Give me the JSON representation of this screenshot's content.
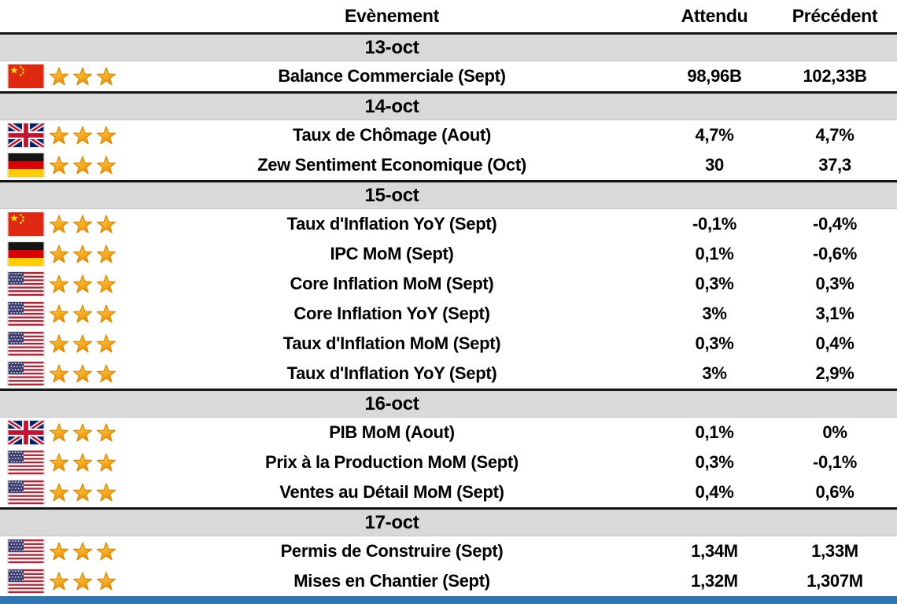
{
  "header": {
    "event": "Evènement",
    "expected": "Attendu",
    "previous": "Précédent"
  },
  "colors": {
    "band_bg": "#d9d9d9",
    "band_rule": "#141414",
    "star_light": "#ffdb5e",
    "star_dark": "#f09000",
    "star_stroke": "#e28a00",
    "accent_bar": "#2e75b6",
    "text": "#000000"
  },
  "groups": [
    {
      "date": "13-oct",
      "events": [
        {
          "flag": "cn",
          "stars": 3,
          "name": "Balance Commerciale (Sept)",
          "expected": "98,96B",
          "previous": "102,33B"
        }
      ]
    },
    {
      "date": "14-oct",
      "events": [
        {
          "flag": "gb",
          "stars": 3,
          "name": "Taux de Chômage (Aout)",
          "expected": "4,7%",
          "previous": "4,7%"
        },
        {
          "flag": "de",
          "stars": 3,
          "name": "Zew Sentiment Economique (Oct)",
          "expected": "30",
          "previous": "37,3"
        }
      ]
    },
    {
      "date": "15-oct",
      "events": [
        {
          "flag": "cn",
          "stars": 3,
          "name": "Taux d'Inflation YoY (Sept)",
          "expected": "-0,1%",
          "previous": "-0,4%"
        },
        {
          "flag": "de",
          "stars": 3,
          "name": "IPC MoM (Sept)",
          "expected": "0,1%",
          "previous": "-0,6%"
        },
        {
          "flag": "us",
          "stars": 3,
          "name": "Core Inflation MoM (Sept)",
          "expected": "0,3%",
          "previous": "0,3%"
        },
        {
          "flag": "us",
          "stars": 3,
          "name": "Core Inflation YoY (Sept)",
          "expected": "3%",
          "previous": "3,1%"
        },
        {
          "flag": "us",
          "stars": 3,
          "name": "Taux d'Inflation MoM (Sept)",
          "expected": "0,3%",
          "previous": "0,4%"
        },
        {
          "flag": "us",
          "stars": 3,
          "name": "Taux d'Inflation YoY (Sept)",
          "expected": "3%",
          "previous": "2,9%"
        }
      ]
    },
    {
      "date": "16-oct",
      "events": [
        {
          "flag": "gb",
          "stars": 3,
          "name": "PIB MoM (Aout)",
          "expected": "0,1%",
          "previous": "0%"
        },
        {
          "flag": "us",
          "stars": 3,
          "name": "Prix à la Production MoM (Sept)",
          "expected": "0,3%",
          "previous": "-0,1%"
        },
        {
          "flag": "us",
          "stars": 3,
          "name": "Ventes au Détail MoM (Sept)",
          "expected": "0,4%",
          "previous": "0,6%"
        }
      ]
    },
    {
      "date": "17-oct",
      "events": [
        {
          "flag": "us",
          "stars": 3,
          "name": "Permis de Construire (Sept)",
          "expected": "1,34M",
          "previous": "1,33M"
        },
        {
          "flag": "us",
          "stars": 3,
          "name": "Mises en Chantier (Sept)",
          "expected": "1,32M",
          "previous": "1,307M"
        }
      ]
    }
  ]
}
